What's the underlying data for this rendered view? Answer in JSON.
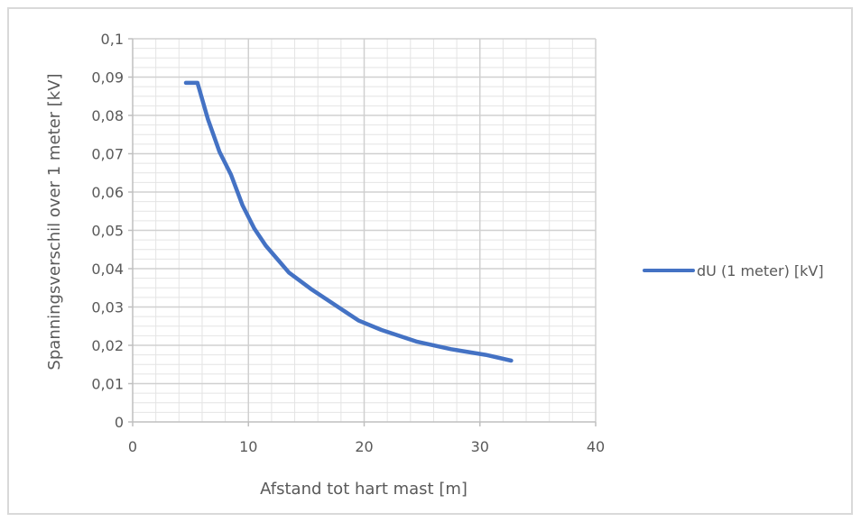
{
  "chart_data": {
    "type": "line",
    "title": "",
    "xlabel": "Afstand tot hart mast [m]",
    "ylabel": "Spanningsverschil over 1 meter [kV]",
    "xlim": [
      0,
      40
    ],
    "ylim": [
      0,
      0.1
    ],
    "x_ticks": [
      0,
      10,
      20,
      30,
      40
    ],
    "x_tick_labels": [
      "0",
      "10",
      "20",
      "30",
      "40"
    ],
    "y_ticks": [
      0,
      0.01,
      0.02,
      0.03,
      0.04,
      0.05,
      0.06,
      0.07,
      0.08,
      0.09,
      0.1
    ],
    "y_tick_labels": [
      "0",
      "0,01",
      "0,02",
      "0,03",
      "0,04",
      "0,05",
      "0,06",
      "0,07",
      "0,08",
      "0,09",
      "0,1"
    ],
    "grid": true,
    "legend_position": "right",
    "series": [
      {
        "name": "dU (1 meter) [kV]",
        "color": "#4472c4",
        "points": [
          [
            4.6,
            0.0885
          ],
          [
            5.6,
            0.0885
          ],
          [
            6.5,
            0.079
          ],
          [
            7.5,
            0.0705
          ],
          [
            8.5,
            0.0645
          ],
          [
            9.5,
            0.0565
          ],
          [
            10.5,
            0.0505
          ],
          [
            11.5,
            0.046
          ],
          [
            12.5,
            0.0425
          ],
          [
            13.5,
            0.039
          ],
          [
            15.5,
            0.0345
          ],
          [
            17.5,
            0.0305
          ],
          [
            19.5,
            0.0265
          ],
          [
            21.5,
            0.024
          ],
          [
            22.5,
            0.023
          ],
          [
            24.5,
            0.021
          ],
          [
            27.5,
            0.019
          ],
          [
            30.5,
            0.0175
          ],
          [
            32.7,
            0.016
          ]
        ]
      }
    ]
  }
}
